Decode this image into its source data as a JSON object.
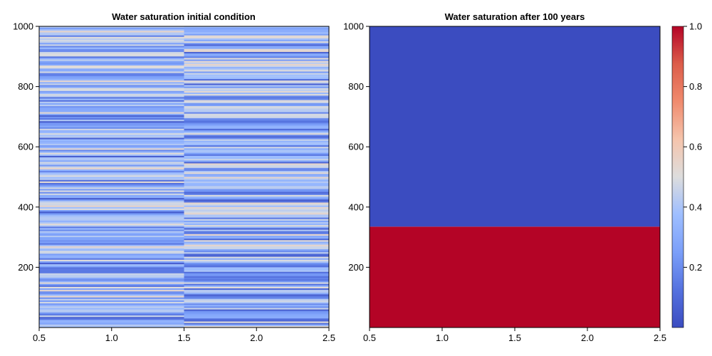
{
  "chart_data": [
    {
      "type": "heatmap",
      "title": "Water saturation initial condition",
      "xlabel": "",
      "ylabel": "",
      "xlim": [
        0.5,
        2.5
      ],
      "ylim": [
        0,
        1000
      ],
      "xticks": [
        "0.5",
        "1.0",
        "1.5",
        "2.0",
        "2.5"
      ],
      "yticks": [
        "200",
        "400",
        "600",
        "800",
        "1000"
      ],
      "columns": [
        {
          "x_range": [
            0.5,
            1.5
          ],
          "saturation_range": [
            0.05,
            0.55
          ],
          "mean_saturation": 0.3
        },
        {
          "x_range": [
            1.5,
            2.5
          ],
          "saturation_range": [
            0.05,
            0.55
          ],
          "mean_saturation": 0.3
        }
      ],
      "description": "Layered field: saturation varies along depth as thin horizontal layers, with two lateral columns split at x = 1.5"
    },
    {
      "type": "heatmap",
      "title": "Water saturation after 100 years",
      "xlabel": "",
      "ylabel": "",
      "xlim": [
        0.5,
        2.5
      ],
      "ylim": [
        0,
        1000
      ],
      "xticks": [
        "0.5",
        "1.0",
        "1.5",
        "2.0",
        "2.5"
      ],
      "yticks": [
        "200",
        "400",
        "600",
        "800",
        "1000"
      ],
      "regions": [
        {
          "y_range": [
            0,
            335
          ],
          "saturation": 1.0
        },
        {
          "y_range": [
            335,
            1000
          ],
          "saturation": 0.0
        }
      ]
    }
  ],
  "colorbar": {
    "colormap": "coolwarm",
    "range": [
      0,
      1
    ],
    "ticks": [
      "0.2",
      "0.4",
      "0.6",
      "0.8",
      "1.0"
    ],
    "tick_values": [
      0.2,
      0.4,
      0.6,
      0.8,
      1.0
    ],
    "low_color": "#3b4cc0",
    "mid_color": "#dddddd",
    "high_color": "#b40426"
  }
}
